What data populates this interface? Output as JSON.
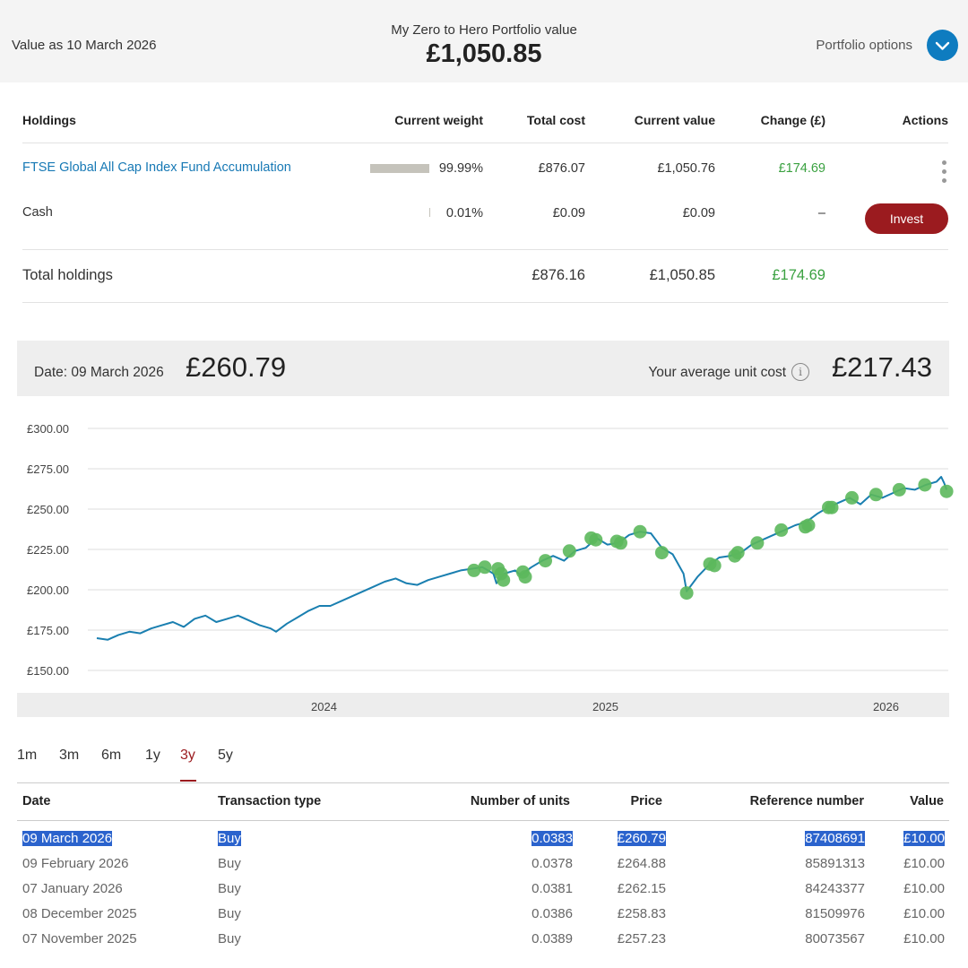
{
  "header": {
    "value_as": "Value as 10 March 2026",
    "portfolio_title": "My Zero to Hero Portfolio value",
    "portfolio_value": "£1,050.85",
    "portfolio_options": "Portfolio options",
    "options_icon": "chevron-down-icon"
  },
  "holdings": {
    "columns": [
      "Holdings",
      "Current weight",
      "Total cost",
      "Current value",
      "Change (£)",
      "Actions"
    ],
    "rows": [
      {
        "name": "FTSE Global All Cap Index Fund Accumulation",
        "weight": "99.99%",
        "weight_fraction": 0.9999,
        "total_cost": "£876.07",
        "current_value": "£1,050.76",
        "change": "£174.69",
        "action_icon": "more-vertical-icon"
      },
      {
        "name": "Cash",
        "weight": "0.01%",
        "weight_fraction": 0.0001,
        "total_cost": "£0.09",
        "current_value": "£0.09",
        "change": "–",
        "action": "Invest"
      }
    ],
    "total": {
      "label": "Total holdings",
      "total_cost": "£876.16",
      "current_value": "£1,050.85",
      "change": "£174.69"
    }
  },
  "price_bar": {
    "date_label": "Date: 09 March 2026",
    "price": "£260.79",
    "avg_label": "Your average unit cost",
    "avg_cost": "£217.43",
    "info_icon": "info-icon"
  },
  "colors": {
    "line": "#1a7fb0",
    "markers": "#5cb85c",
    "accent": "#9b1b1f",
    "link": "#1779b5",
    "positive": "#3aa140"
  },
  "chart_data": {
    "type": "line",
    "y_tick_labels": [
      "£300.00",
      "£275.00",
      "£250.00",
      "£225.00",
      "£200.00",
      "£175.00",
      "£150.00"
    ],
    "ylim": [
      150,
      300
    ],
    "x_tick_labels": [
      "2024",
      "2025",
      "2026"
    ],
    "x_range": [
      "2023-03-10",
      "2026-03-10"
    ],
    "grid": true,
    "series": [
      {
        "values_by_date": [
          [
            "2023-03-10",
            170
          ],
          [
            "2023-03-24",
            169
          ],
          [
            "2023-04-07",
            172
          ],
          [
            "2023-04-21",
            174
          ],
          [
            "2023-05-05",
            173
          ],
          [
            "2023-05-19",
            176
          ],
          [
            "2023-06-02",
            178
          ],
          [
            "2023-06-16",
            180
          ],
          [
            "2023-06-30",
            177
          ],
          [
            "2023-07-14",
            182
          ],
          [
            "2023-07-28",
            184
          ],
          [
            "2023-08-11",
            180
          ],
          [
            "2023-08-25",
            182
          ],
          [
            "2023-09-08",
            184
          ],
          [
            "2023-09-22",
            181
          ],
          [
            "2023-10-06",
            178
          ],
          [
            "2023-10-20",
            176
          ],
          [
            "2023-10-27",
            174
          ],
          [
            "2023-11-10",
            179
          ],
          [
            "2023-11-24",
            183
          ],
          [
            "2023-12-08",
            187
          ],
          [
            "2023-12-22",
            190
          ],
          [
            "2024-01-05",
            190
          ],
          [
            "2024-01-19",
            193
          ],
          [
            "2024-02-02",
            196
          ],
          [
            "2024-02-16",
            199
          ],
          [
            "2024-03-01",
            202
          ],
          [
            "2024-03-15",
            205
          ],
          [
            "2024-03-29",
            207
          ],
          [
            "2024-04-12",
            204
          ],
          [
            "2024-04-26",
            203
          ],
          [
            "2024-05-10",
            206
          ],
          [
            "2024-05-24",
            208
          ],
          [
            "2024-06-07",
            210
          ],
          [
            "2024-06-21",
            212
          ],
          [
            "2024-07-05",
            213
          ],
          [
            "2024-07-19",
            214
          ],
          [
            "2024-08-02",
            210
          ],
          [
            "2024-08-06",
            204
          ],
          [
            "2024-08-16",
            210
          ],
          [
            "2024-08-30",
            212
          ],
          [
            "2024-09-06",
            209
          ],
          [
            "2024-09-20",
            214
          ],
          [
            "2024-10-04",
            218
          ],
          [
            "2024-10-18",
            221
          ],
          [
            "2024-11-01",
            218
          ],
          [
            "2024-11-15",
            224
          ],
          [
            "2024-11-29",
            226
          ],
          [
            "2024-12-13",
            232
          ],
          [
            "2024-12-27",
            228
          ],
          [
            "2025-01-10",
            229
          ],
          [
            "2025-01-24",
            234
          ],
          [
            "2025-02-07",
            236
          ],
          [
            "2025-02-21",
            235
          ],
          [
            "2025-03-07",
            226
          ],
          [
            "2025-03-21",
            222
          ],
          [
            "2025-04-04",
            210
          ],
          [
            "2025-04-08",
            199
          ],
          [
            "2025-04-22",
            208
          ],
          [
            "2025-05-06",
            215
          ],
          [
            "2025-05-20",
            220
          ],
          [
            "2025-06-03",
            221
          ],
          [
            "2025-06-17",
            223
          ],
          [
            "2025-07-01",
            228
          ],
          [
            "2025-07-15",
            231
          ],
          [
            "2025-07-29",
            234
          ],
          [
            "2025-08-12",
            237
          ],
          [
            "2025-08-26",
            240
          ],
          [
            "2025-09-09",
            242
          ],
          [
            "2025-09-23",
            247
          ],
          [
            "2025-10-07",
            251
          ],
          [
            "2025-10-21",
            254
          ],
          [
            "2025-11-04",
            257
          ],
          [
            "2025-11-18",
            253
          ],
          [
            "2025-12-02",
            259
          ],
          [
            "2025-12-16",
            257
          ],
          [
            "2025-12-30",
            260
          ],
          [
            "2026-01-13",
            263
          ],
          [
            "2026-01-27",
            262
          ],
          [
            "2026-02-10",
            265
          ],
          [
            "2026-02-24",
            267
          ],
          [
            "2026-03-02",
            270
          ],
          [
            "2026-03-06",
            266
          ],
          [
            "2026-03-09",
            262
          ]
        ],
        "purchase_markers": [
          [
            "2024-07-08",
            212
          ],
          [
            "2024-07-22",
            214
          ],
          [
            "2024-08-08",
            213
          ],
          [
            "2024-08-12",
            210
          ],
          [
            "2024-08-15",
            206
          ],
          [
            "2024-09-09",
            211
          ],
          [
            "2024-09-12",
            208
          ],
          [
            "2024-10-08",
            218
          ],
          [
            "2024-11-08",
            224
          ],
          [
            "2024-12-06",
            232
          ],
          [
            "2024-12-12",
            231
          ],
          [
            "2025-01-08",
            230
          ],
          [
            "2025-01-13",
            229
          ],
          [
            "2025-02-07",
            236
          ],
          [
            "2025-03-07",
            223
          ],
          [
            "2025-04-08",
            198
          ],
          [
            "2025-05-08",
            216
          ],
          [
            "2025-05-14",
            215
          ],
          [
            "2025-06-09",
            221
          ],
          [
            "2025-06-13",
            223
          ],
          [
            "2025-07-08",
            229
          ],
          [
            "2025-08-08",
            237
          ],
          [
            "2025-09-08",
            239
          ],
          [
            "2025-09-12",
            240
          ],
          [
            "2025-10-08",
            251
          ],
          [
            "2025-10-12",
            251
          ],
          [
            "2025-11-07",
            257
          ],
          [
            "2025-12-08",
            259
          ],
          [
            "2026-01-07",
            262
          ],
          [
            "2026-02-09",
            265
          ],
          [
            "2026-03-09",
            261
          ]
        ]
      }
    ]
  },
  "periods": {
    "tabs": [
      "1m",
      "3m",
      "6m",
      "1y",
      "3y",
      "5y"
    ],
    "active": "3y"
  },
  "transactions": {
    "columns": [
      "Date",
      "Transaction type",
      "Number of units",
      "Price",
      "Reference number",
      "Value"
    ],
    "rows": [
      {
        "date": "09 March 2026",
        "type": "Buy",
        "units": "0.0383",
        "price": "£260.79",
        "ref": "87408691",
        "value": "£10.00",
        "selected": true
      },
      {
        "date": "09 February 2026",
        "type": "Buy",
        "units": "0.0378",
        "price": "£264.88",
        "ref": "85891313",
        "value": "£10.00"
      },
      {
        "date": "07 January 2026",
        "type": "Buy",
        "units": "0.0381",
        "price": "£262.15",
        "ref": "84243377",
        "value": "£10.00"
      },
      {
        "date": "08 December 2025",
        "type": "Buy",
        "units": "0.0386",
        "price": "£258.83",
        "ref": "81509976",
        "value": "£10.00"
      },
      {
        "date": "07 November 2025",
        "type": "Buy",
        "units": "0.0389",
        "price": "£257.23",
        "ref": "80073567",
        "value": "£10.00"
      }
    ]
  }
}
